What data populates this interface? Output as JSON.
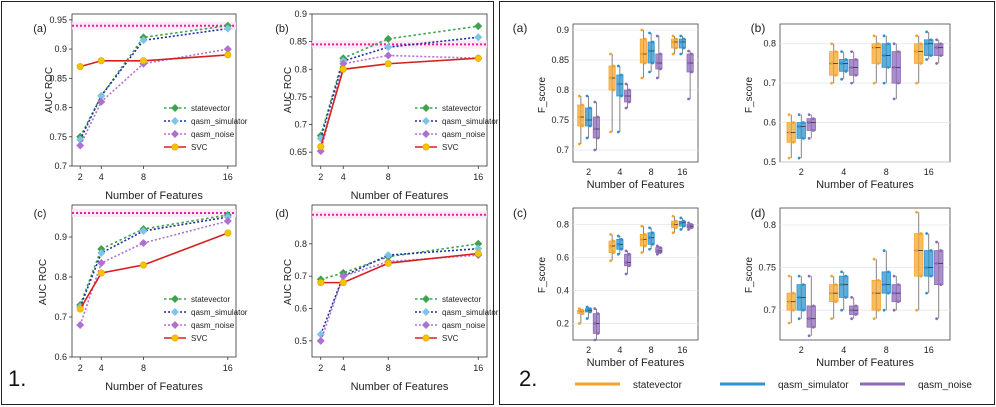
{
  "figure1": {
    "label": "1.",
    "charts": [
      {
        "type": "line",
        "panel": "(a)",
        "xlabel": "Number of Features",
        "ylabel": "AUC ROC",
        "x": [
          2,
          4,
          8,
          16
        ],
        "xticks": [
          "2",
          "4",
          "8",
          "16"
        ],
        "ylim": [
          0.7,
          0.96
        ],
        "yticks": [
          0.7,
          0.75,
          0.8,
          0.85,
          0.9,
          0.95
        ],
        "ytick_labels": [
          "0.7",
          "0.75",
          "0.8",
          "0.85",
          "0.9",
          "0.95"
        ],
        "reference_line": 0.94,
        "legend_position": "bottom-right",
        "series": [
          {
            "name": "statevector",
            "values": [
              0.75,
              0.82,
              0.92,
              0.94
            ]
          },
          {
            "name": "qasm_simulator",
            "values": [
              0.745,
              0.82,
              0.915,
              0.935
            ]
          },
          {
            "name": "qasm_noise",
            "values": [
              0.735,
              0.81,
              0.875,
              0.9
            ]
          },
          {
            "name": "SVC",
            "values": [
              0.87,
              0.88,
              0.88,
              0.89
            ]
          }
        ]
      },
      {
        "type": "line",
        "panel": "(b)",
        "xlabel": "Number of Features",
        "ylabel": "AUC ROC",
        "x": [
          2,
          4,
          8,
          16
        ],
        "xticks": [
          "2",
          "4",
          "8",
          "16"
        ],
        "ylim": [
          0.625,
          0.9
        ],
        "yticks": [
          0.65,
          0.7,
          0.75,
          0.8,
          0.85,
          0.9
        ],
        "ytick_labels": [
          "0.65",
          "0.7",
          "0.75",
          "0.8",
          "0.85",
          "0.9"
        ],
        "reference_line": 0.845,
        "legend_position": "bottom-right",
        "series": [
          {
            "name": "statevector",
            "values": [
              0.68,
              0.82,
              0.855,
              0.878
            ]
          },
          {
            "name": "qasm_simulator",
            "values": [
              0.675,
              0.815,
              0.84,
              0.858
            ]
          },
          {
            "name": "qasm_noise",
            "values": [
              0.652,
              0.81,
              0.825,
              0.82
            ]
          },
          {
            "name": "SVC",
            "values": [
              0.66,
              0.8,
              0.81,
              0.82
            ]
          }
        ]
      },
      {
        "type": "line",
        "panel": "(c)",
        "xlabel": "Number of Features",
        "ylabel": "AUC ROC",
        "x": [
          2,
          4,
          8,
          16
        ],
        "xticks": [
          "2",
          "4",
          "8",
          "16"
        ],
        "ylim": [
          0.6,
          0.98
        ],
        "yticks": [
          0.6,
          0.7,
          0.8,
          0.9
        ],
        "ytick_labels": [
          "0.6",
          "0.7",
          "0.8",
          "0.9"
        ],
        "reference_line": 0.96,
        "legend_position": "bottom-right",
        "series": [
          {
            "name": "statevector",
            "values": [
              0.73,
              0.87,
              0.92,
              0.955
            ]
          },
          {
            "name": "qasm_simulator",
            "values": [
              0.725,
              0.86,
              0.915,
              0.95
            ]
          },
          {
            "name": "qasm_noise",
            "values": [
              0.68,
              0.835,
              0.885,
              0.94
            ]
          },
          {
            "name": "SVC",
            "values": [
              0.72,
              0.81,
              0.83,
              0.91
            ]
          }
        ]
      },
      {
        "type": "line",
        "panel": "(d)",
        "xlabel": "Number of Features",
        "ylabel": "AUC ROC",
        "x": [
          2,
          4,
          8,
          16
        ],
        "xticks": [
          "2",
          "4",
          "8",
          "16"
        ],
        "ylim": [
          0.45,
          0.92
        ],
        "yticks": [
          0.5,
          0.6,
          0.7,
          0.8
        ],
        "ytick_labels": [
          "0.5",
          "0.6",
          "0.7",
          "0.8"
        ],
        "reference_line": 0.89,
        "legend_position": "bottom-right",
        "series": [
          {
            "name": "statevector",
            "values": [
              0.69,
              0.71,
              0.76,
              0.8
            ]
          },
          {
            "name": "qasm_simulator",
            "values": [
              0.52,
              0.7,
              0.765,
              0.785
            ]
          },
          {
            "name": "qasm_noise",
            "values": [
              0.5,
              0.7,
              0.745,
              0.765
            ]
          },
          {
            "name": "SVC",
            "values": [
              0.68,
              0.68,
              0.74,
              0.77
            ]
          }
        ]
      }
    ]
  },
  "figure2": {
    "label": "2.",
    "legend": [
      "statevector",
      "qasm_simulator",
      "qasm_noise"
    ],
    "charts": [
      {
        "type": "box",
        "panel": "(a)",
        "xlabel": "Number of Features",
        "ylabel": "F_score",
        "categories": [
          "2",
          "4",
          "8",
          "16"
        ],
        "ylim": [
          0.68,
          0.91
        ],
        "yticks": [
          0.7,
          0.75,
          0.8,
          0.85,
          0.9
        ],
        "ytick_labels": [
          "0.7",
          "0.75",
          "0.8",
          "0.85",
          "0.9"
        ],
        "series": [
          {
            "name": "statevector",
            "boxes": [
              [
                0.71,
                0.74,
                0.755,
                0.775,
                0.79
              ],
              [
                0.73,
                0.8,
                0.82,
                0.84,
                0.86
              ],
              [
                0.82,
                0.845,
                0.86,
                0.885,
                0.9
              ],
              [
                0.86,
                0.87,
                0.88,
                0.885,
                0.89
              ]
            ]
          },
          {
            "name": "qasm_simulator",
            "boxes": [
              [
                0.72,
                0.74,
                0.75,
                0.77,
                0.79
              ],
              [
                0.73,
                0.79,
                0.81,
                0.825,
                0.84
              ],
              [
                0.83,
                0.845,
                0.865,
                0.88,
                0.895
              ],
              [
                0.86,
                0.87,
                0.88,
                0.885,
                0.89
              ]
            ]
          },
          {
            "name": "qasm_noise",
            "boxes": [
              [
                0.7,
                0.72,
                0.735,
                0.755,
                0.78
              ],
              [
                0.77,
                0.78,
                0.79,
                0.8,
                0.81
              ],
              [
                0.82,
                0.835,
                0.845,
                0.86,
                0.89
              ],
              [
                0.785,
                0.83,
                0.845,
                0.86,
                0.865
              ]
            ]
          }
        ]
      },
      {
        "type": "box",
        "panel": "(b)",
        "xlabel": "Number of Features",
        "ylabel": "F_score",
        "categories": [
          "2",
          "4",
          "8",
          "16"
        ],
        "ylim": [
          0.5,
          0.85
        ],
        "yticks": [
          0.5,
          0.6,
          0.7,
          0.8
        ],
        "ytick_labels": [
          "0.5",
          "0.6",
          "0.7",
          "0.8"
        ],
        "series": [
          {
            "name": "statevector",
            "boxes": [
              [
                0.51,
                0.55,
                0.575,
                0.6,
                0.62
              ],
              [
                0.7,
                0.72,
                0.75,
                0.78,
                0.8
              ],
              [
                0.7,
                0.75,
                0.79,
                0.8,
                0.82
              ],
              [
                0.7,
                0.75,
                0.78,
                0.8,
                0.82
              ]
            ]
          },
          {
            "name": "qasm_simulator",
            "boxes": [
              [
                0.51,
                0.56,
                0.59,
                0.6,
                0.62
              ],
              [
                0.71,
                0.73,
                0.75,
                0.76,
                0.78
              ],
              [
                0.7,
                0.74,
                0.77,
                0.8,
                0.82
              ],
              [
                0.76,
                0.77,
                0.8,
                0.81,
                0.83
              ]
            ]
          },
          {
            "name": "qasm_noise",
            "boxes": [
              [
                0.56,
                0.58,
                0.6,
                0.61,
                0.62
              ],
              [
                0.7,
                0.72,
                0.74,
                0.76,
                0.78
              ],
              [
                0.66,
                0.7,
                0.74,
                0.78,
                0.8
              ],
              [
                0.75,
                0.77,
                0.79,
                0.8,
                0.81
              ]
            ]
          }
        ]
      },
      {
        "type": "box",
        "panel": "(c)",
        "xlabel": "Number of Features",
        "ylabel": "F_score",
        "categories": [
          "2",
          "4",
          "8",
          "16"
        ],
        "ylim": [
          0.1,
          0.9
        ],
        "yticks": [
          0.2,
          0.4,
          0.6,
          0.8
        ],
        "ytick_labels": [
          "0.2",
          "0.4",
          "0.6",
          "0.8"
        ],
        "series": [
          {
            "name": "statevector",
            "boxes": [
              [
                0.2,
                0.26,
                0.275,
                0.28,
                0.29
              ],
              [
                0.58,
                0.63,
                0.67,
                0.7,
                0.74
              ],
              [
                0.63,
                0.67,
                0.71,
                0.74,
                0.79
              ],
              [
                0.75,
                0.78,
                0.8,
                0.82,
                0.85
              ]
            ]
          },
          {
            "name": "qasm_simulator",
            "boxes": [
              [
                0.23,
                0.27,
                0.28,
                0.29,
                0.3
              ],
              [
                0.62,
                0.65,
                0.68,
                0.71,
                0.73
              ],
              [
                0.65,
                0.68,
                0.72,
                0.75,
                0.78
              ],
              [
                0.77,
                0.79,
                0.81,
                0.82,
                0.84
              ]
            ]
          },
          {
            "name": "qasm_noise",
            "boxes": [
              [
                0.1,
                0.14,
                0.2,
                0.26,
                0.29
              ],
              [
                0.5,
                0.55,
                0.57,
                0.62,
                0.64
              ],
              [
                0.62,
                0.63,
                0.64,
                0.66,
                0.67
              ],
              [
                0.77,
                0.78,
                0.79,
                0.8,
                0.81
              ]
            ]
          }
        ]
      },
      {
        "type": "box",
        "panel": "(d)",
        "xlabel": "Number of Features",
        "ylabel": "F_score",
        "categories": [
          "2",
          "4",
          "8",
          "16"
        ],
        "ylim": [
          0.665,
          0.82
        ],
        "yticks": [
          0.7,
          0.75,
          0.8
        ],
        "ytick_labels": [
          "0.7",
          "0.75",
          "0.8"
        ],
        "series": [
          {
            "name": "statevector",
            "boxes": [
              [
                0.685,
                0.7,
                0.71,
                0.72,
                0.74
              ],
              [
                0.69,
                0.71,
                0.72,
                0.73,
                0.74
              ],
              [
                0.69,
                0.7,
                0.72,
                0.735,
                0.76
              ],
              [
                0.7,
                0.74,
                0.77,
                0.79,
                0.815
              ]
            ]
          },
          {
            "name": "qasm_simulator",
            "boxes": [
              [
                0.69,
                0.7,
                0.715,
                0.73,
                0.74
              ],
              [
                0.7,
                0.715,
                0.73,
                0.74,
                0.745
              ],
              [
                0.7,
                0.72,
                0.73,
                0.745,
                0.77
              ],
              [
                0.72,
                0.74,
                0.75,
                0.77,
                0.79
              ]
            ]
          },
          {
            "name": "qasm_noise",
            "boxes": [
              [
                0.67,
                0.68,
                0.69,
                0.705,
                0.74
              ],
              [
                0.69,
                0.695,
                0.7,
                0.705,
                0.715
              ],
              [
                0.7,
                0.71,
                0.72,
                0.73,
                0.74
              ],
              [
                0.69,
                0.73,
                0.755,
                0.77,
                0.78
              ]
            ]
          }
        ]
      }
    ]
  },
  "colors": {
    "statevector": "#3fa34d",
    "qasm_simulator": "#1f2f9e",
    "qasm_noise": "#b070d0",
    "SVC": "#d62020",
    "reference": "#e2239b",
    "box_statevector": "#f5a52e",
    "box_qasm_simulator": "#2b93cf",
    "box_qasm_noise": "#8e6ab8"
  }
}
